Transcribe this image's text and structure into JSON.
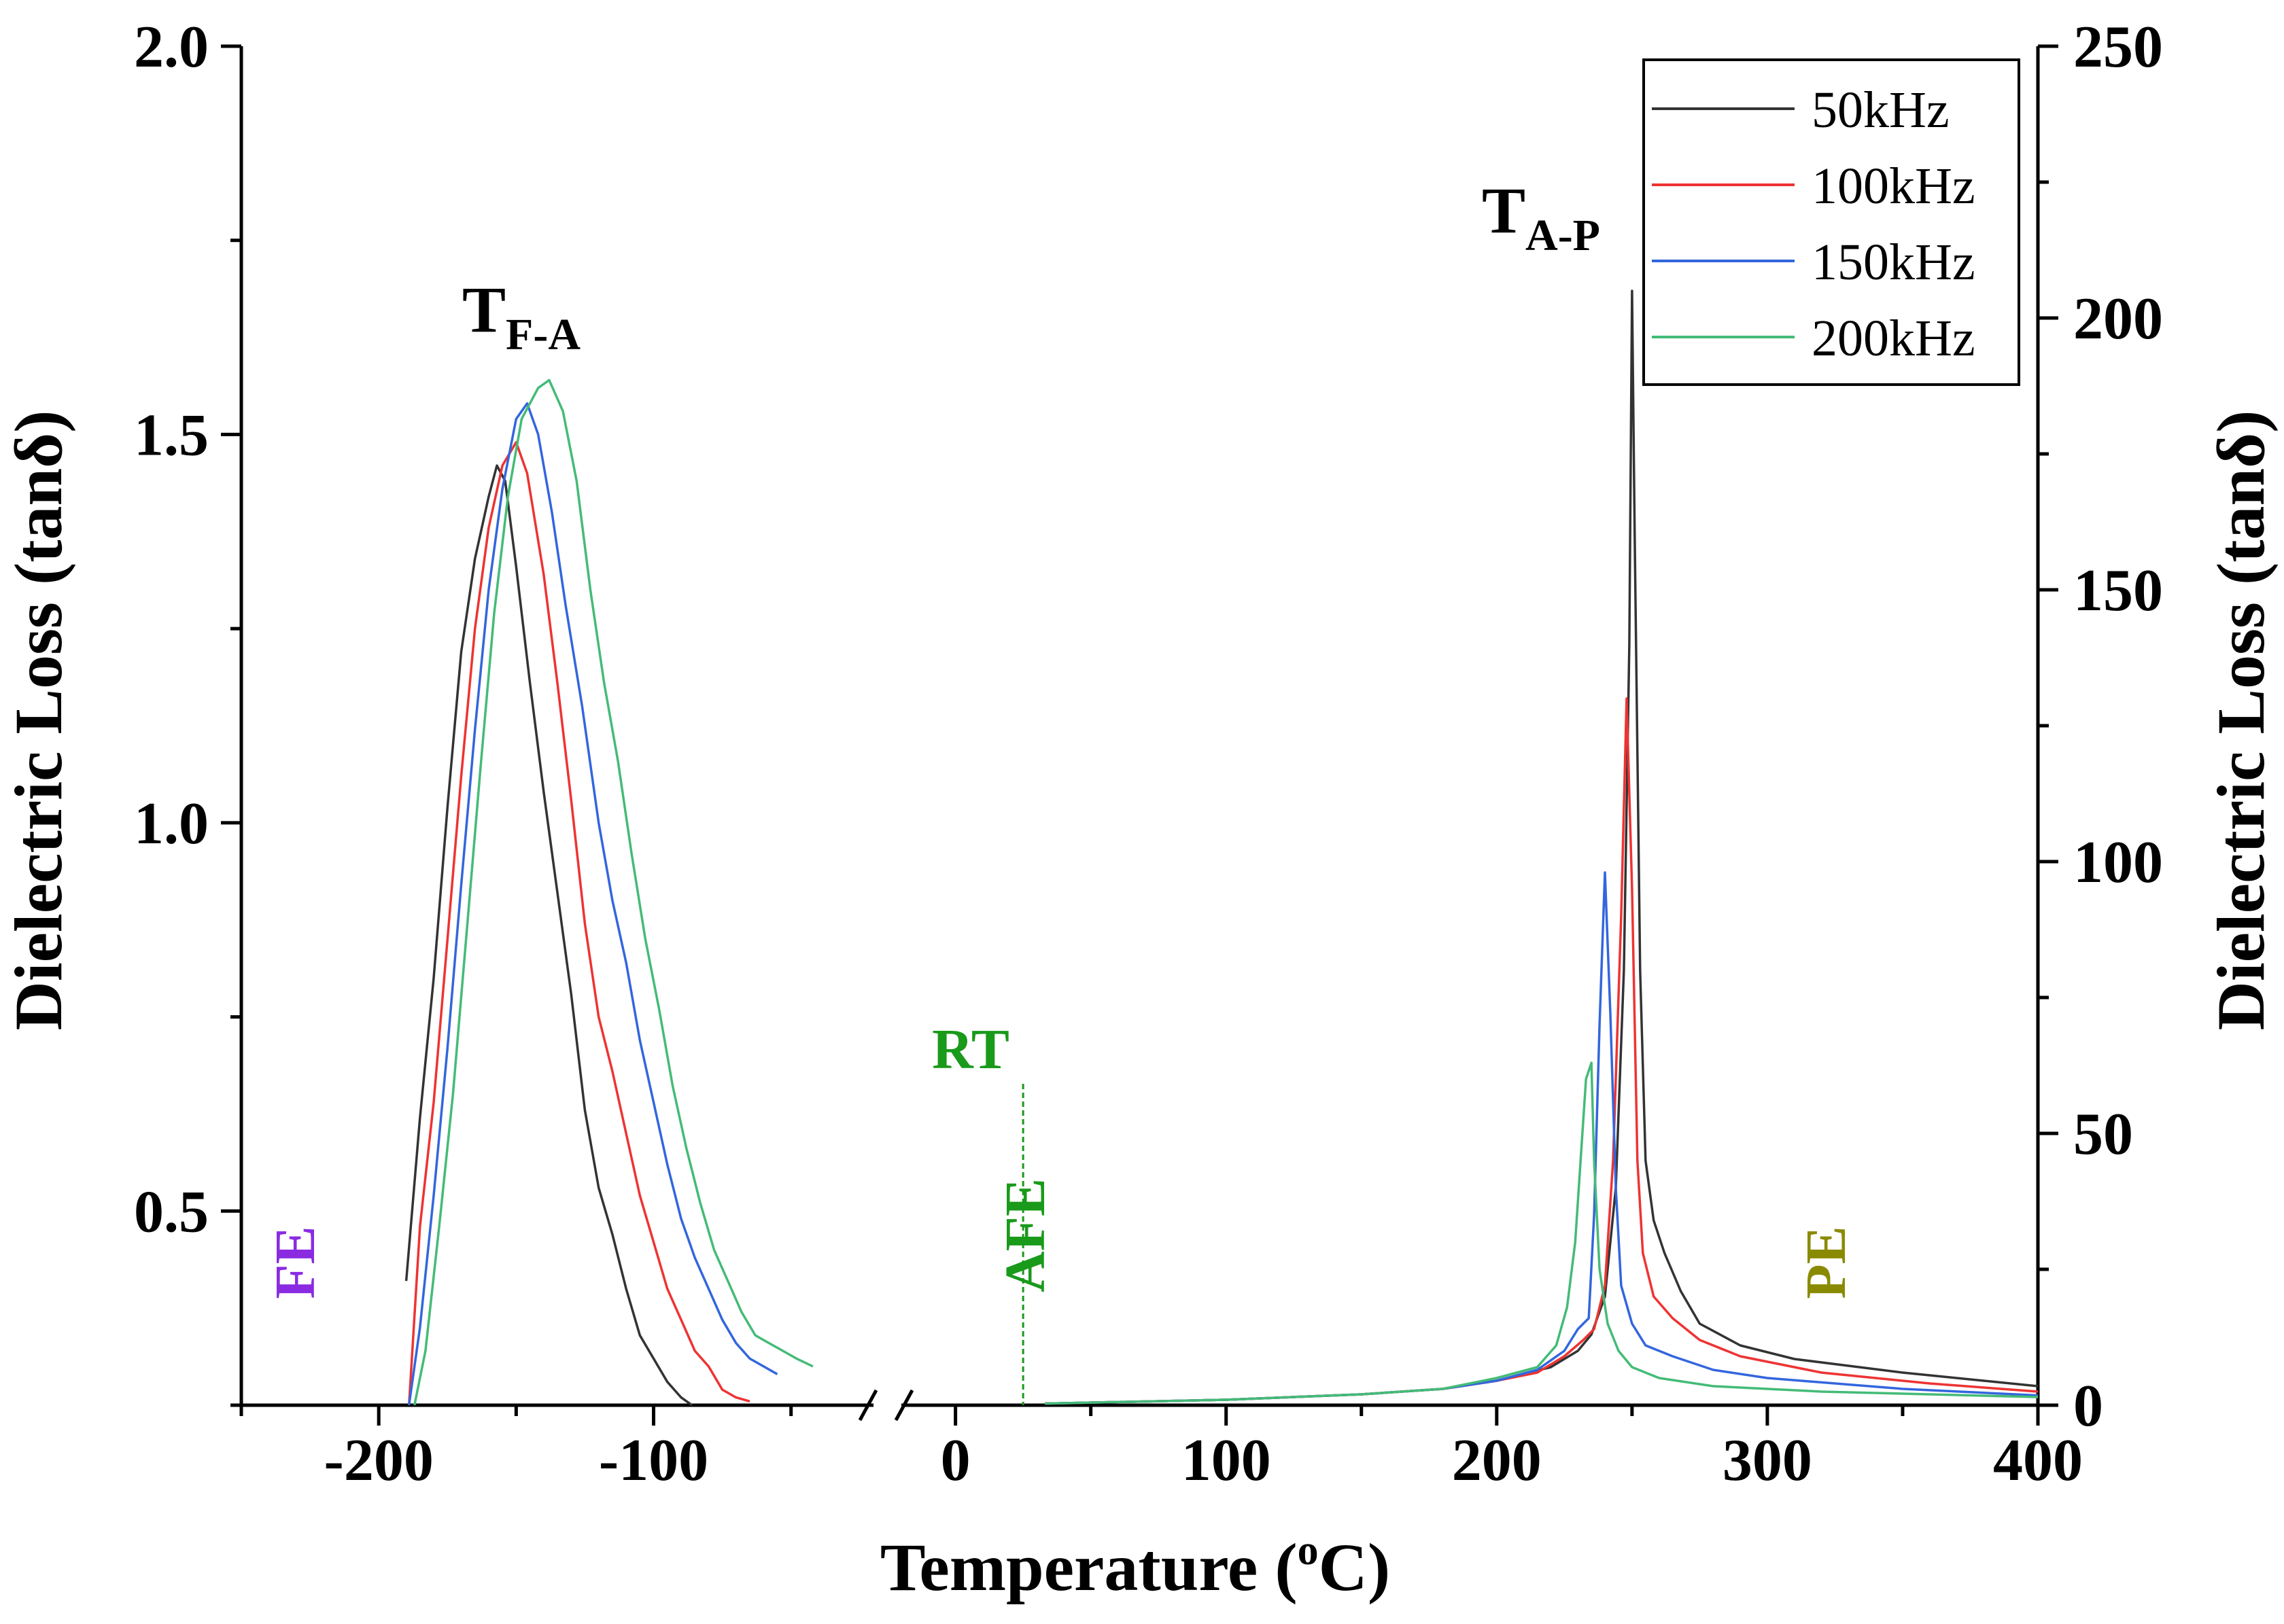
{
  "chart_data": {
    "type": "line",
    "xlabel": "Temperature (oC)",
    "xlabel_base": "Temperature (",
    "xlabel_sup": "o",
    "xlabel_end": "C)",
    "ylabel_left": "Dielectric Loss (tanδ)",
    "ylabel_right": "Dielectric Loss (tanδ)",
    "left_panel": {
      "xlim": [
        -250,
        -20
      ],
      "ylim": [
        0.25,
        2.0
      ],
      "x_ticks": [
        -200,
        -100
      ],
      "y_ticks": [
        "0.5",
        "1.0",
        "1.5",
        "2.0"
      ]
    },
    "right_panel": {
      "xlim": [
        -20,
        400
      ],
      "ylim": [
        0,
        250
      ],
      "x_ticks": [
        0,
        100,
        200,
        300,
        400
      ],
      "y_ticks": [
        0,
        50,
        100,
        150,
        200,
        250
      ]
    },
    "series": [
      {
        "name": "50kHz",
        "color": "#333333",
        "left": [
          [
            -190,
            0.41
          ],
          [
            -185,
            0.62
          ],
          [
            -180,
            0.8
          ],
          [
            -175,
            1.02
          ],
          [
            -170,
            1.22
          ],
          [
            -165,
            1.34
          ],
          [
            -160,
            1.42
          ],
          [
            -157,
            1.46
          ],
          [
            -154,
            1.44
          ],
          [
            -150,
            1.33
          ],
          [
            -145,
            1.18
          ],
          [
            -140,
            1.04
          ],
          [
            -135,
            0.91
          ],
          [
            -130,
            0.78
          ],
          [
            -125,
            0.63
          ],
          [
            -120,
            0.53
          ],
          [
            -115,
            0.47
          ],
          [
            -110,
            0.4
          ],
          [
            -105,
            0.34
          ],
          [
            -100,
            0.31
          ],
          [
            -95,
            0.28
          ],
          [
            -90,
            0.26
          ],
          [
            -86,
            0.25
          ]
        ],
        "right": [
          [
            33,
            0.3
          ],
          [
            100,
            1.0
          ],
          [
            150,
            2.0
          ],
          [
            180,
            3.0
          ],
          [
            200,
            4.5
          ],
          [
            220,
            7.0
          ],
          [
            230,
            10.0
          ],
          [
            235,
            13.0
          ],
          [
            240,
            20.0
          ],
          [
            244,
            40.0
          ],
          [
            247,
            80.0
          ],
          [
            249,
            140.0
          ],
          [
            250,
            205.0
          ],
          [
            251,
            160.0
          ],
          [
            253,
            80.0
          ],
          [
            255,
            45.0
          ],
          [
            258,
            34.0
          ],
          [
            262,
            28.0
          ],
          [
            268,
            21.0
          ],
          [
            275,
            15.0
          ],
          [
            290,
            11.0
          ],
          [
            310,
            8.5
          ],
          [
            350,
            6.0
          ],
          [
            400,
            3.5
          ]
        ]
      },
      {
        "name": "100kHz",
        "color": "#ee3333",
        "left": [
          [
            -189,
            0.25
          ],
          [
            -185,
            0.48
          ],
          [
            -180,
            0.64
          ],
          [
            -175,
            0.85
          ],
          [
            -170,
            1.06
          ],
          [
            -165,
            1.25
          ],
          [
            -160,
            1.38
          ],
          [
            -155,
            1.46
          ],
          [
            -150,
            1.49
          ],
          [
            -146,
            1.45
          ],
          [
            -140,
            1.32
          ],
          [
            -135,
            1.18
          ],
          [
            -130,
            1.03
          ],
          [
            -125,
            0.87
          ],
          [
            -120,
            0.75
          ],
          [
            -115,
            0.68
          ],
          [
            -110,
            0.6
          ],
          [
            -105,
            0.52
          ],
          [
            -100,
            0.46
          ],
          [
            -95,
            0.4
          ],
          [
            -90,
            0.36
          ],
          [
            -85,
            0.32
          ],
          [
            -80,
            0.3
          ],
          [
            -75,
            0.27
          ],
          [
            -70,
            0.26
          ],
          [
            -65,
            0.255
          ]
        ],
        "right": [
          [
            33,
            0.3
          ],
          [
            100,
            1.0
          ],
          [
            150,
            2.0
          ],
          [
            180,
            3.0
          ],
          [
            200,
            4.5
          ],
          [
            215,
            6.0
          ],
          [
            225,
            9.0
          ],
          [
            232,
            12.0
          ],
          [
            236,
            14.0
          ],
          [
            240,
            22.0
          ],
          [
            243,
            45.0
          ],
          [
            246,
            90.0
          ],
          [
            248,
            130.0
          ],
          [
            250,
            95.0
          ],
          [
            252,
            45.0
          ],
          [
            254,
            28.0
          ],
          [
            258,
            20.0
          ],
          [
            265,
            16.0
          ],
          [
            275,
            12.0
          ],
          [
            290,
            9.0
          ],
          [
            320,
            6.0
          ],
          [
            360,
            4.0
          ],
          [
            400,
            2.5
          ]
        ]
      },
      {
        "name": "150kHz",
        "color": "#3366dd",
        "left": [
          [
            -189,
            0.25
          ],
          [
            -185,
            0.35
          ],
          [
            -180,
            0.52
          ],
          [
            -175,
            0.71
          ],
          [
            -170,
            0.92
          ],
          [
            -165,
            1.12
          ],
          [
            -160,
            1.3
          ],
          [
            -155,
            1.43
          ],
          [
            -150,
            1.52
          ],
          [
            -146,
            1.54
          ],
          [
            -142,
            1.5
          ],
          [
            -137,
            1.4
          ],
          [
            -132,
            1.28
          ],
          [
            -126,
            1.15
          ],
          [
            -120,
            1.0
          ],
          [
            -115,
            0.9
          ],
          [
            -110,
            0.82
          ],
          [
            -105,
            0.72
          ],
          [
            -100,
            0.64
          ],
          [
            -95,
            0.56
          ],
          [
            -90,
            0.49
          ],
          [
            -85,
            0.44
          ],
          [
            -80,
            0.4
          ],
          [
            -75,
            0.36
          ],
          [
            -70,
            0.33
          ],
          [
            -65,
            0.31
          ],
          [
            -60,
            0.3
          ],
          [
            -55,
            0.29
          ]
        ],
        "right": [
          [
            33,
            0.3
          ],
          [
            100,
            1.0
          ],
          [
            150,
            2.0
          ],
          [
            180,
            3.0
          ],
          [
            200,
            4.5
          ],
          [
            215,
            6.5
          ],
          [
            225,
            10.0
          ],
          [
            230,
            14.0
          ],
          [
            234,
            16.0
          ],
          [
            236,
            35.0
          ],
          [
            238,
            70.0
          ],
          [
            240,
            98.0
          ],
          [
            242,
            72.0
          ],
          [
            244,
            40.0
          ],
          [
            246,
            22.0
          ],
          [
            250,
            15.0
          ],
          [
            255,
            11.0
          ],
          [
            265,
            9.0
          ],
          [
            280,
            6.5
          ],
          [
            300,
            5.0
          ],
          [
            350,
            3.0
          ],
          [
            400,
            1.8
          ]
        ]
      },
      {
        "name": "200kHz",
        "color": "#44bb77",
        "left": [
          [
            -187,
            0.25
          ],
          [
            -183,
            0.32
          ],
          [
            -178,
            0.48
          ],
          [
            -173,
            0.65
          ],
          [
            -168,
            0.86
          ],
          [
            -163,
            1.07
          ],
          [
            -158,
            1.27
          ],
          [
            -153,
            1.42
          ],
          [
            -148,
            1.52
          ],
          [
            -142,
            1.56
          ],
          [
            -138,
            1.57
          ],
          [
            -133,
            1.53
          ],
          [
            -128,
            1.44
          ],
          [
            -123,
            1.3
          ],
          [
            -118,
            1.18
          ],
          [
            -113,
            1.08
          ],
          [
            -108,
            0.96
          ],
          [
            -103,
            0.85
          ],
          [
            -98,
            0.76
          ],
          [
            -93,
            0.66
          ],
          [
            -88,
            0.58
          ],
          [
            -83,
            0.51
          ],
          [
            -78,
            0.45
          ],
          [
            -73,
            0.41
          ],
          [
            -68,
            0.37
          ],
          [
            -63,
            0.34
          ],
          [
            -58,
            0.33
          ],
          [
            -53,
            0.32
          ],
          [
            -48,
            0.31
          ],
          [
            -42,
            0.3
          ]
        ],
        "right": [
          [
            33,
            0.3
          ],
          [
            100,
            1.0
          ],
          [
            150,
            2.0
          ],
          [
            180,
            3.0
          ],
          [
            200,
            5.0
          ],
          [
            215,
            7.0
          ],
          [
            222,
            11.0
          ],
          [
            226,
            18.0
          ],
          [
            229,
            30.0
          ],
          [
            231,
            45.0
          ],
          [
            233,
            60.0
          ],
          [
            235,
            63.0
          ],
          [
            236,
            45.0
          ],
          [
            238,
            25.0
          ],
          [
            241,
            15.0
          ],
          [
            245,
            10.0
          ],
          [
            250,
            7.0
          ],
          [
            260,
            5.0
          ],
          [
            280,
            3.5
          ],
          [
            320,
            2.5
          ],
          [
            400,
            1.5
          ]
        ]
      }
    ],
    "legend": [
      "50kHz",
      "100kHz",
      "150kHz",
      "200kHz"
    ],
    "legend_position": "top-right",
    "annotations": {
      "tfa_main": "T",
      "tfa_sub": "F-A",
      "tap_main": "T",
      "tap_sub": "A-P",
      "rt": "RT",
      "rt_temperature": 25
    },
    "regions": [
      {
        "label": "FE",
        "color": "#8a2be2"
      },
      {
        "label": "AFE",
        "color": "#1a9a1a"
      },
      {
        "label": "PE",
        "color": "#8a8a00"
      }
    ]
  }
}
